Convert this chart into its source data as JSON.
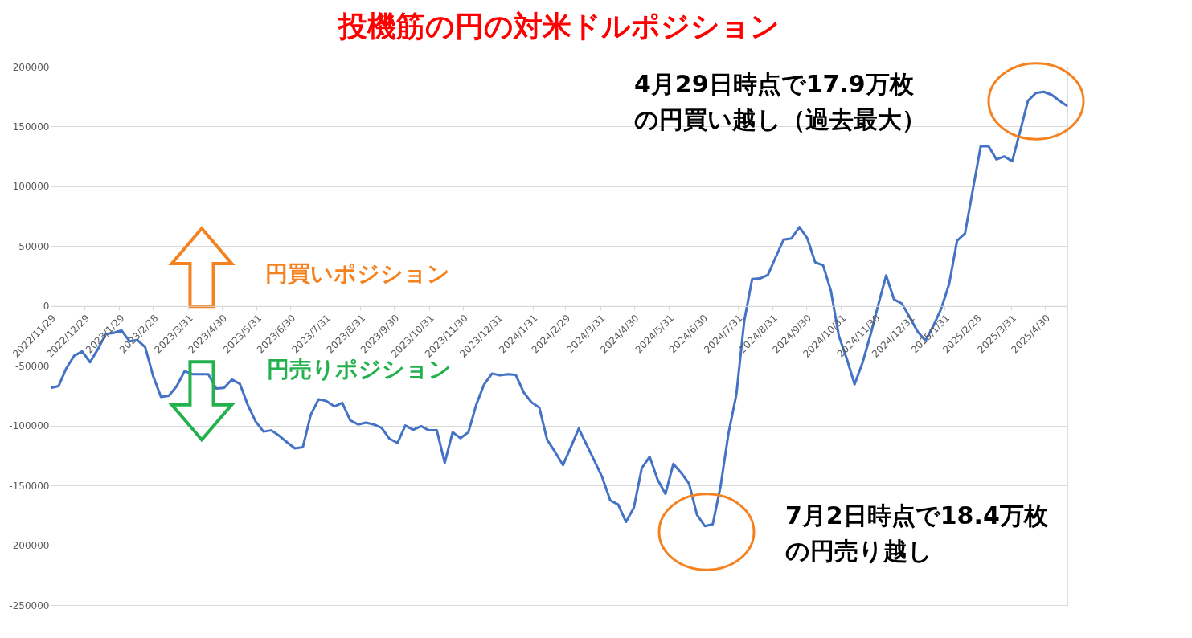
{
  "chart_data": {
    "type": "line",
    "title": "投機筋の円の対米ドルポジション",
    "x": [
      "2022-11-29",
      "2022-12-06",
      "2022-12-13",
      "2022-12-20",
      "2022-12-27",
      "2023-01-03",
      "2023-01-10",
      "2023-01-17",
      "2023-01-24",
      "2023-01-31",
      "2023-02-07",
      "2023-02-14",
      "2023-02-21",
      "2023-02-28",
      "2023-03-07",
      "2023-03-14",
      "2023-03-21",
      "2023-03-28",
      "2023-04-04",
      "2023-04-11",
      "2023-04-18",
      "2023-04-25",
      "2023-05-02",
      "2023-05-09",
      "2023-05-16",
      "2023-05-23",
      "2023-05-30",
      "2023-06-06",
      "2023-06-13",
      "2023-06-20",
      "2023-06-27",
      "2023-07-04",
      "2023-07-11",
      "2023-07-18",
      "2023-07-25",
      "2023-08-01",
      "2023-08-08",
      "2023-08-15",
      "2023-08-22",
      "2023-08-29",
      "2023-09-05",
      "2023-09-12",
      "2023-09-19",
      "2023-09-26",
      "2023-10-03",
      "2023-10-10",
      "2023-10-17",
      "2023-10-24",
      "2023-10-31",
      "2023-11-07",
      "2023-11-14",
      "2023-11-21",
      "2023-11-28",
      "2023-12-05",
      "2023-12-12",
      "2023-12-19",
      "2023-12-26",
      "2024-01-02",
      "2024-01-09",
      "2024-01-16",
      "2024-01-23",
      "2024-01-30",
      "2024-02-06",
      "2024-02-13",
      "2024-02-20",
      "2024-02-27",
      "2024-03-05",
      "2024-03-12",
      "2024-03-19",
      "2024-03-26",
      "2024-04-02",
      "2024-04-09",
      "2024-04-16",
      "2024-04-23",
      "2024-04-30",
      "2024-05-07",
      "2024-05-14",
      "2024-05-21",
      "2024-05-28",
      "2024-06-04",
      "2024-06-11",
      "2024-06-18",
      "2024-06-25",
      "2024-07-02",
      "2024-07-09",
      "2024-07-16",
      "2024-07-23",
      "2024-07-30",
      "2024-08-06",
      "2024-08-13",
      "2024-08-20",
      "2024-08-27",
      "2024-09-03",
      "2024-09-10",
      "2024-09-17",
      "2024-09-24",
      "2024-10-01",
      "2024-10-08",
      "2024-10-15",
      "2024-10-22",
      "2024-10-29",
      "2024-11-05",
      "2024-11-12",
      "2024-11-19",
      "2024-11-26",
      "2024-12-03",
      "2024-12-10",
      "2024-12-17",
      "2024-12-24",
      "2024-12-31",
      "2025-01-07",
      "2025-01-14",
      "2025-01-21",
      "2025-01-28",
      "2025-02-04",
      "2025-02-11",
      "2025-02-18",
      "2025-02-25",
      "2025-03-04",
      "2025-03-11",
      "2025-03-18",
      "2025-03-25",
      "2025-04-01",
      "2025-04-08",
      "2025-04-15",
      "2025-04-22",
      "2025-04-29",
      "2025-05-06",
      "2025-05-13",
      "2025-05-20"
    ],
    "series": [
      {
        "color": "#4472c4",
        "values": [
          -68500,
          -67000,
          -52000,
          -41500,
          -38000,
          -47000,
          -36000,
          -23500,
          -22500,
          -20500,
          -29500,
          -28500,
          -34500,
          -58500,
          -76000,
          -75000,
          -67000,
          -54500,
          -57000,
          -57000,
          -57000,
          -69000,
          -68500,
          -61500,
          -65000,
          -82500,
          -96500,
          -105000,
          -104000,
          -108500,
          -114000,
          -119000,
          -118000,
          -91000,
          -78000,
          -79500,
          -84000,
          -81000,
          -95500,
          -99000,
          -97500,
          -99000,
          -102000,
          -111000,
          -114500,
          -100000,
          -103500,
          -100500,
          -104000,
          -104000,
          -131000,
          -105500,
          -110500,
          -105500,
          -82500,
          -65500,
          -56500,
          -58000,
          -57000,
          -57500,
          -72000,
          -80500,
          -85000,
          -112000,
          -122000,
          -133000,
          -118000,
          -102500,
          -116000,
          -129500,
          -143500,
          -162500,
          -166000,
          -180500,
          -168500,
          -135500,
          -126000,
          -145000,
          -157000,
          -132000,
          -139500,
          -148500,
          -174500,
          -184000,
          -182500,
          -150500,
          -106500,
          -74000,
          -12500,
          22500,
          23000,
          26000,
          41000,
          55500,
          56500,
          66000,
          56500,
          36500,
          34000,
          12500,
          -25000,
          -44000,
          -65500,
          -47500,
          -24500,
          1000,
          25500,
          5500,
          2000,
          -9500,
          -21500,
          -29000,
          -16500,
          -2000,
          18500,
          54500,
          60500,
          97000,
          133500,
          133500,
          122500,
          125000,
          121000,
          146000,
          171500,
          178000,
          179000,
          176500,
          171500,
          167000
        ]
      }
    ],
    "xlim": [
      "2022-11-29",
      "2025-05-20"
    ],
    "xticks": [
      {
        "value": "2022-11-29",
        "label": "2022/11/29"
      },
      {
        "value": "2022-12-29",
        "label": "2022/12/29"
      },
      {
        "value": "2023-01-29",
        "label": "2023/1/29"
      },
      {
        "value": "2023-02-28",
        "label": "2023/2/28"
      },
      {
        "value": "2023-03-31",
        "label": "2023/3/31"
      },
      {
        "value": "2023-04-30",
        "label": "2023/4/30"
      },
      {
        "value": "2023-05-31",
        "label": "2023/5/31"
      },
      {
        "value": "2023-06-30",
        "label": "2023/6/30"
      },
      {
        "value": "2023-07-31",
        "label": "2023/7/31"
      },
      {
        "value": "2023-08-31",
        "label": "2023/8/31"
      },
      {
        "value": "2023-09-30",
        "label": "2023/9/30"
      },
      {
        "value": "2023-10-31",
        "label": "2023/10/31"
      },
      {
        "value": "2023-11-30",
        "label": "2023/11/30"
      },
      {
        "value": "2023-12-31",
        "label": "2023/12/31"
      },
      {
        "value": "2024-01-31",
        "label": "2024/1/31"
      },
      {
        "value": "2024-02-29",
        "label": "2024/2/29"
      },
      {
        "value": "2024-03-31",
        "label": "2024/3/31"
      },
      {
        "value": "2024-04-30",
        "label": "2024/4/30"
      },
      {
        "value": "2024-05-31",
        "label": "2024/5/31"
      },
      {
        "value": "2024-06-30",
        "label": "2024/6/30"
      },
      {
        "value": "2024-07-31",
        "label": "2024/7/31"
      },
      {
        "value": "2024-08-31",
        "label": "2024/8/31"
      },
      {
        "value": "2024-09-30",
        "label": "2024/9/30"
      },
      {
        "value": "2024-10-31",
        "label": "2024/10/31"
      },
      {
        "value": "2024-11-30",
        "label": "2024/11/30"
      },
      {
        "value": "2024-12-31",
        "label": "2024/12/31"
      },
      {
        "value": "2025-01-31",
        "label": "2025/1/31"
      },
      {
        "value": "2025-02-28",
        "label": "2025/2/28"
      },
      {
        "value": "2025-03-31",
        "label": "2025/3/31"
      },
      {
        "value": "2025-04-30",
        "label": "2025/4/30"
      }
    ],
    "ylim": [
      -250000,
      200000
    ],
    "yticks": [
      -250000,
      -200000,
      -150000,
      -100000,
      -50000,
      0,
      50000,
      100000,
      150000,
      200000
    ],
    "grid": "y",
    "annotations": [
      "円買いポジション",
      "円売りポジション",
      "4月29日時点で17.9万枚の円買い越し（過去最大）",
      "7月2日時点で18.4万枚の円売り越し"
    ]
  }
}
